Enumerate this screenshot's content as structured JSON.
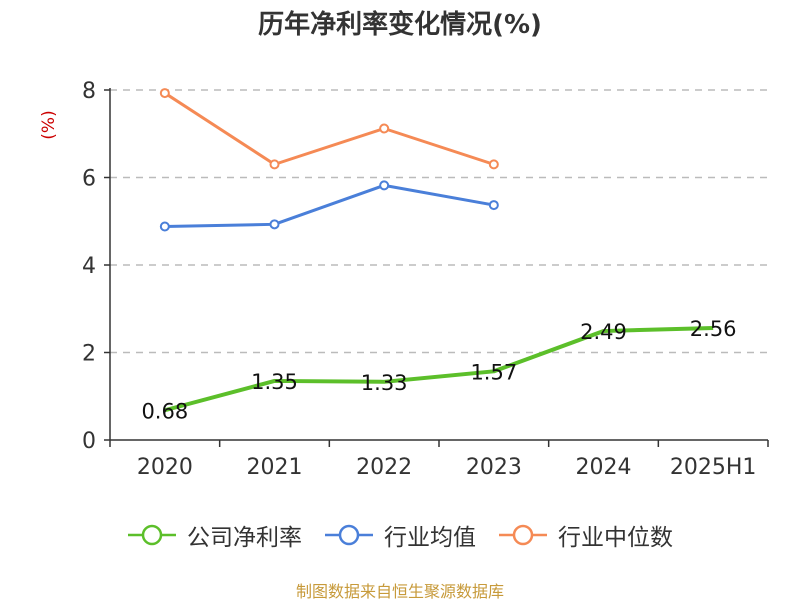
{
  "title": "历年净利率变化情况(%)",
  "source_note": "制图数据来自恒生聚源数据库",
  "colors": {
    "company": "#5cbf2a",
    "industry_avg": "#4a7fd9",
    "industry_median": "#f58a55",
    "axis": "#333333",
    "grid": "#bbbbbb",
    "ylabel": "#cc0000"
  },
  "chart_data": {
    "type": "line",
    "title": "历年净利率变化情况(%)",
    "xlabel": "",
    "ylabel": "(%)",
    "categories": [
      "2020",
      "2021",
      "2022",
      "2023",
      "2024",
      "2025H1"
    ],
    "yticks": [
      "0",
      "2",
      "4",
      "6",
      "8"
    ],
    "ylim": [
      0,
      8
    ],
    "grid": true,
    "legend_position": "bottom",
    "series": [
      {
        "name": "公司净利率",
        "values": [
          0.68,
          1.35,
          1.33,
          1.57,
          2.49,
          2.56
        ],
        "data_labels": [
          "0.68",
          "1.35",
          "1.33",
          "1.57",
          "2.49",
          "2.56"
        ]
      },
      {
        "name": "行业均值",
        "values": [
          4.88,
          4.93,
          5.82,
          5.37,
          null,
          null
        ]
      },
      {
        "name": "行业中位数",
        "values": [
          7.93,
          6.3,
          7.12,
          6.3,
          null,
          null
        ]
      }
    ]
  }
}
